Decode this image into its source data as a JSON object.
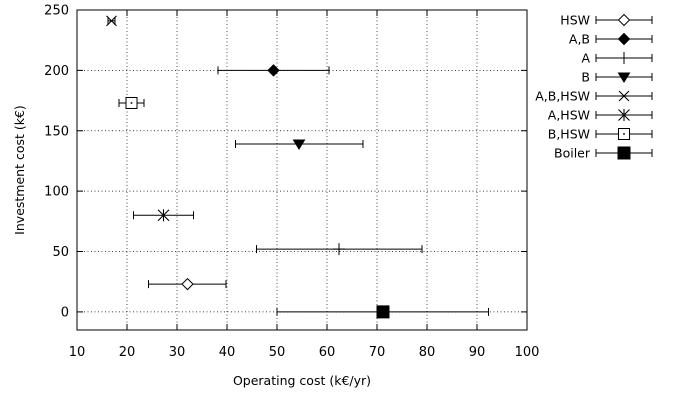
{
  "chart_data": {
    "type": "scatter",
    "title": "",
    "xlabel": "Operating cost (k€/yr)",
    "ylabel": "Investment cost (k€)",
    "xlim": [
      10,
      100
    ],
    "ylim": [
      -15,
      250
    ],
    "xticks": [
      10,
      20,
      30,
      40,
      50,
      60,
      70,
      80,
      90,
      100
    ],
    "yticks": [
      0,
      50,
      100,
      150,
      200,
      250
    ],
    "grid": true,
    "legend_position": "outside-right",
    "error_bars": "horizontal",
    "series": [
      {
        "name": "HSW",
        "marker": "diamond-open",
        "x": 32.1,
        "xmin": 24.3,
        "xmax": 39.8,
        "y": 23
      },
      {
        "name": "A,B",
        "marker": "diamond-filled",
        "x": 49.3,
        "xmin": 38.2,
        "xmax": 60.4,
        "y": 200
      },
      {
        "name": "A",
        "marker": "plus",
        "x": 62.4,
        "xmin": 45.9,
        "xmax": 79.0,
        "y": 52
      },
      {
        "name": "B",
        "marker": "triangle-down-filled",
        "x": 54.4,
        "xmin": 41.7,
        "xmax": 67.2,
        "y": 139
      },
      {
        "name": "A,B,HSW",
        "marker": "cross",
        "x": 16.9,
        "xmin": 16.2,
        "xmax": 17.6,
        "y": 241
      },
      {
        "name": "A,HSW",
        "marker": "asterisk",
        "x": 27.3,
        "xmin": 21.3,
        "xmax": 33.3,
        "y": 80
      },
      {
        "name": "B,HSW",
        "marker": "square-open-dot",
        "x": 20.9,
        "xmin": 18.4,
        "xmax": 23.4,
        "y": 173
      },
      {
        "name": "Boiler",
        "marker": "square-filled",
        "x": 71.2,
        "xmin": 50.0,
        "xmax": 92.3,
        "y": 0
      }
    ]
  }
}
